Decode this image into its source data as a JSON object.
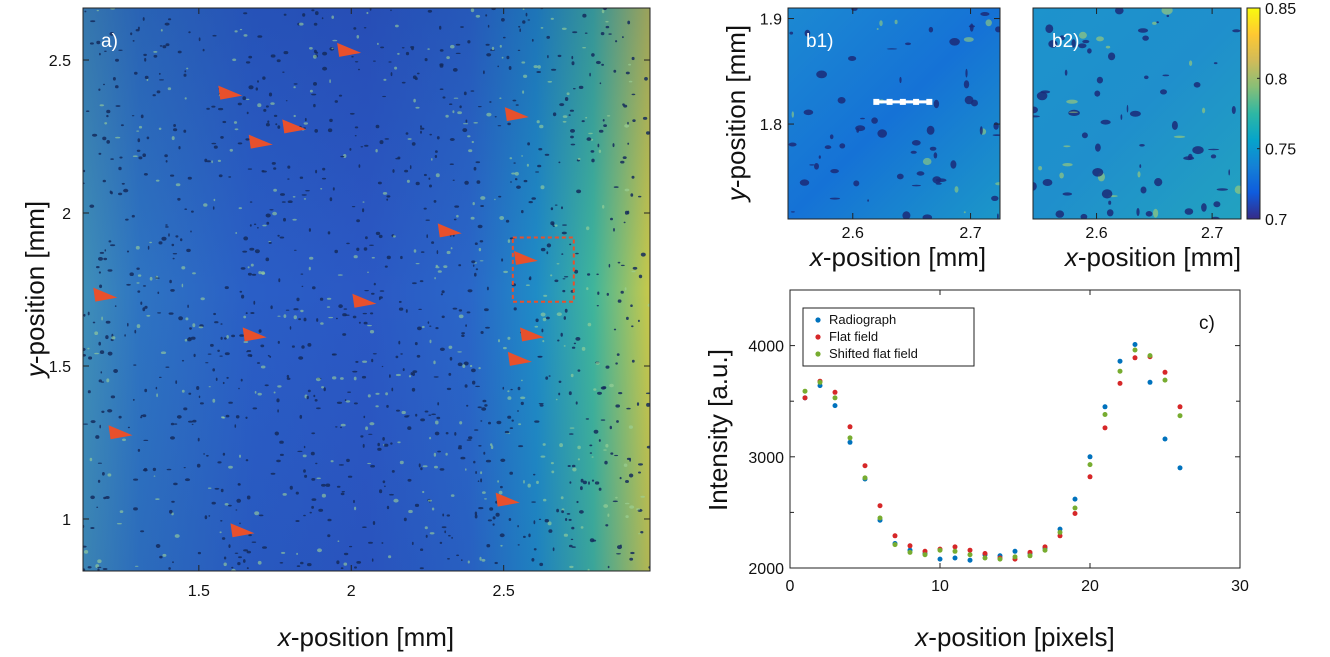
{
  "chart_data": [
    {
      "type": "heatmap",
      "panel_label": "a)",
      "xlabel": {
        "italic": "x",
        "rest": "-position [mm]"
      },
      "ylabel": {
        "italic": "y",
        "rest": "-position [mm]"
      },
      "xlim": [
        1.12,
        2.98
      ],
      "ylim": [
        0.83,
        2.67
      ],
      "xticks": [
        1.5,
        2,
        2.5
      ],
      "xtick_labels": [
        "1.5",
        "2",
        "2.5"
      ],
      "yticks": [
        1,
        1.5,
        2,
        2.5
      ],
      "ytick_labels": [
        "1",
        "1.5",
        "2",
        "2.5"
      ],
      "arrow_color": "#e8502c",
      "arrows": [
        {
          "x": 1.98,
          "y": 2.53
        },
        {
          "x": 1.59,
          "y": 2.39
        },
        {
          "x": 1.8,
          "y": 2.28
        },
        {
          "x": 1.69,
          "y": 2.23
        },
        {
          "x": 2.53,
          "y": 2.32
        },
        {
          "x": 2.31,
          "y": 1.94
        },
        {
          "x": 2.56,
          "y": 1.85
        },
        {
          "x": 1.18,
          "y": 1.73
        },
        {
          "x": 2.03,
          "y": 1.71
        },
        {
          "x": 1.67,
          "y": 1.6
        },
        {
          "x": 2.58,
          "y": 1.6
        },
        {
          "x": 2.54,
          "y": 1.52
        },
        {
          "x": 1.23,
          "y": 1.28
        },
        {
          "x": 2.5,
          "y": 1.06
        },
        {
          "x": 1.63,
          "y": 0.96
        }
      ],
      "roi_box": {
        "x0": 2.53,
        "x1": 2.73,
        "y0": 1.71,
        "y1": 1.92,
        "color": "#e8502c"
      }
    },
    {
      "type": "heatmap",
      "panel_label": "b1)",
      "xlabel": {
        "italic": "x",
        "rest": "-position [mm]"
      },
      "ylabel": {
        "italic": "y",
        "rest": "-position [mm]"
      },
      "xlim": [
        2.545,
        2.725
      ],
      "ylim": [
        1.71,
        1.91
      ],
      "xticks": [
        2.6,
        2.7
      ],
      "xtick_labels": [
        "2.6",
        "2.7"
      ],
      "yticks": [
        1.8,
        1.9
      ],
      "ytick_labels": [
        "1.8",
        "1.9"
      ],
      "profile_line": {
        "x0": 2.62,
        "x1": 2.665,
        "y": 1.821
      }
    },
    {
      "type": "heatmap",
      "panel_label": "b2)",
      "xlabel": {
        "italic": "x",
        "rest": "-position [mm]"
      },
      "xlim": [
        2.545,
        2.725
      ],
      "ylim": [
        1.71,
        1.91
      ],
      "xticks": [
        2.6,
        2.7
      ],
      "xtick_labels": [
        "2.6",
        "2.7"
      ],
      "colorbar": {
        "range": [
          0.7,
          0.85
        ],
        "ticks": [
          0.7,
          0.75,
          0.8,
          0.85
        ],
        "tick_labels": [
          "0.7",
          "0.75",
          "0.8",
          "0.85"
        ],
        "colormap": [
          "#352a87",
          "#0f5cdd",
          "#1481d6",
          "#06a4ca",
          "#2eb7a4",
          "#87bf77",
          "#d1bb59",
          "#fec832",
          "#f9fb0e"
        ]
      }
    },
    {
      "type": "scatter",
      "panel_label": "c)",
      "xlabel": {
        "italic": "x",
        "rest": "-position [pixels]"
      },
      "ylabel": "Intensity [a.u.]",
      "xlim": [
        0,
        30
      ],
      "ylim": [
        2000,
        4500
      ],
      "xticks": [
        0,
        10,
        20,
        30
      ],
      "xtick_labels": [
        "0",
        "10",
        "20",
        "30"
      ],
      "yticks": [
        2000,
        3000,
        4000
      ],
      "ytick_labels": [
        "2000",
        "3000",
        "4000"
      ],
      "legend_position": "top-left",
      "x": [
        1,
        2,
        3,
        4,
        5,
        6,
        7,
        8,
        9,
        10,
        11,
        12,
        13,
        14,
        15,
        16,
        17,
        18,
        19,
        20,
        21,
        22,
        23,
        24,
        25,
        26
      ],
      "series": [
        {
          "name": "Radiograph",
          "color": "#0072bd",
          "values": [
            3530,
            3640,
            3460,
            3130,
            2800,
            2430,
            2220,
            2160,
            2130,
            2080,
            2090,
            2070,
            2120,
            2110,
            2150,
            2130,
            2180,
            2350,
            2620,
            3000,
            3450,
            3860,
            4010,
            3670,
            3160,
            2900
          ]
        },
        {
          "name": "Flat field",
          "color": "#d62728",
          "values": [
            3530,
            3680,
            3580,
            3270,
            2920,
            2560,
            2290,
            2200,
            2150,
            2170,
            2190,
            2160,
            2130,
            2090,
            2080,
            2140,
            2190,
            2290,
            2490,
            2820,
            3260,
            3660,
            3890,
            3900,
            3760,
            3450
          ]
        },
        {
          "name": "Shifted flat field",
          "color": "#77ac30",
          "values": [
            3590,
            3670,
            3530,
            3170,
            2810,
            2450,
            2210,
            2140,
            2120,
            2160,
            2150,
            2120,
            2090,
            2080,
            2100,
            2110,
            2160,
            2320,
            2540,
            2930,
            3380,
            3770,
            3960,
            3910,
            3690,
            3370
          ]
        }
      ]
    }
  ]
}
